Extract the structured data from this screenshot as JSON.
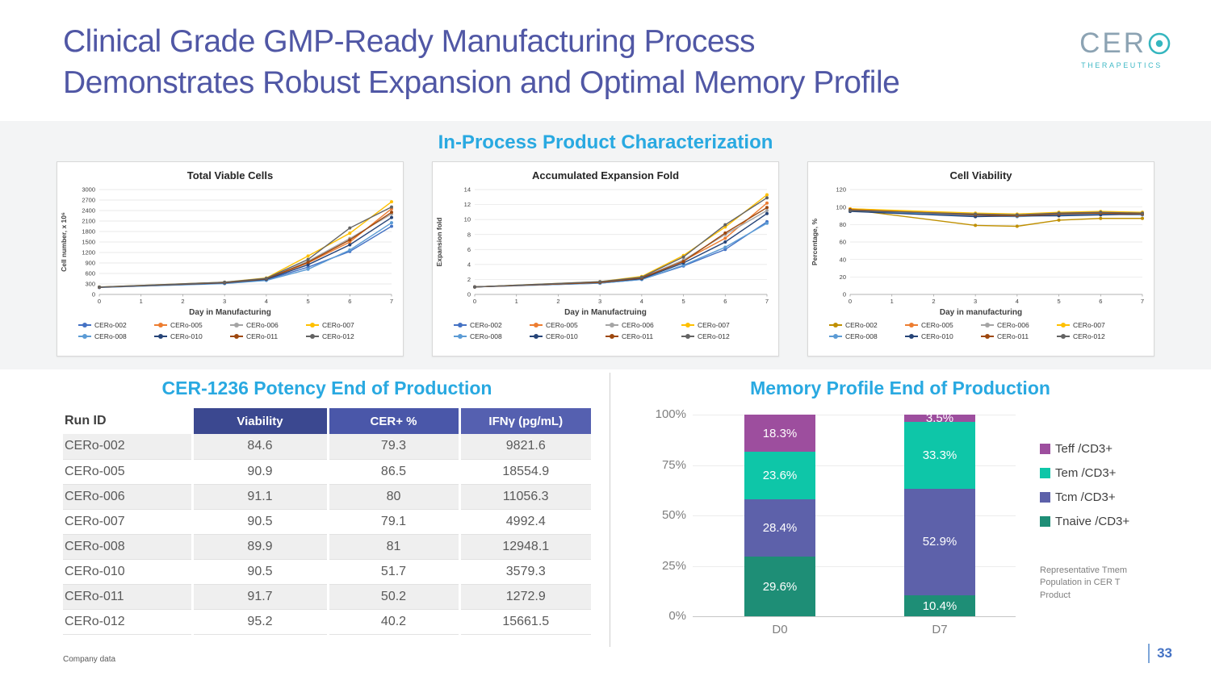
{
  "slide": {
    "title_line1": "Clinical Grade GMP-Ready Manufacturing Process",
    "title_line2": "Demonstrates Robust Expansion and Optimal Memory Profile",
    "footer_note": "Company data",
    "page_number": "33"
  },
  "logo": {
    "text": "CER",
    "sub": "THERAPEUTICS"
  },
  "section": {
    "title": "In-Process Product Characterization"
  },
  "potency": {
    "title": "CER-1236 Potency End of Production",
    "columns": [
      "Run ID",
      "Viability",
      "CER+ %",
      "IFNγ  (pg/mL)"
    ],
    "rows": [
      [
        "CERo-002",
        "84.6",
        "79.3",
        "9821.6"
      ],
      [
        "CERo-005",
        "90.9",
        "86.5",
        "18554.9"
      ],
      [
        "CERo-006",
        "91.1",
        "80",
        "11056.3"
      ],
      [
        "CERo-007",
        "90.5",
        "79.1",
        "4992.4"
      ],
      [
        "CERo-008",
        "89.9",
        "81",
        "12948.1"
      ],
      [
        "CERo-010",
        "90.5",
        "51.7",
        "3579.3"
      ],
      [
        "CERo-011",
        "91.7",
        "50.2",
        "1272.9"
      ],
      [
        "CERo-012",
        "95.2",
        "40.2",
        "15661.5"
      ]
    ]
  },
  "memory": {
    "note": "Representative Tmem Population in CER T Product"
  },
  "chart_data": [
    {
      "type": "line",
      "title": "Total Viable Cells",
      "xlabel": "Day in Manufacturing",
      "ylabel": "Cell number, x 10⁶",
      "xlim": [
        0,
        7
      ],
      "ylim": [
        0,
        3000
      ],
      "xticks": [
        0,
        1,
        2,
        3,
        4,
        5,
        6,
        7
      ],
      "yticks": [
        0,
        300,
        600,
        900,
        1200,
        1500,
        1800,
        2100,
        2400,
        2700,
        3000
      ],
      "x": [
        0,
        3,
        4,
        5,
        6,
        7
      ],
      "grid": true,
      "legend_position": "bottom",
      "series": [
        {
          "name": "CERo-002",
          "color": "#4472C4",
          "values": [
            200,
            320,
            420,
            780,
            1230,
            1950
          ]
        },
        {
          "name": "CERo-005",
          "color": "#ED7D31",
          "values": [
            210,
            330,
            440,
            900,
            1500,
            2450
          ]
        },
        {
          "name": "CERo-006",
          "color": "#A5A5A5",
          "values": [
            205,
            330,
            430,
            950,
            1600,
            2300
          ]
        },
        {
          "name": "CERo-007",
          "color": "#FFC000",
          "values": [
            210,
            350,
            470,
            1100,
            1750,
            2650
          ]
        },
        {
          "name": "CERo-008",
          "color": "#5B9BD5",
          "values": [
            200,
            310,
            400,
            720,
            1270,
            2050
          ]
        },
        {
          "name": "CERo-010",
          "color": "#264478",
          "values": [
            205,
            330,
            430,
            850,
            1420,
            2200
          ]
        },
        {
          "name": "CERo-011",
          "color": "#9E480E",
          "values": [
            205,
            340,
            450,
            920,
            1560,
            2350
          ]
        },
        {
          "name": "CERo-012",
          "color": "#636363",
          "values": [
            210,
            350,
            460,
            1000,
            1900,
            2500
          ]
        }
      ]
    },
    {
      "type": "line",
      "title": "Accumulated Expansion Fold",
      "xlabel": "Day in Manufactruing",
      "ylabel": "Expansion fold",
      "xlim": [
        0,
        7
      ],
      "ylim": [
        0,
        14
      ],
      "xticks": [
        0,
        1,
        2,
        3,
        4,
        5,
        6,
        7
      ],
      "yticks": [
        0,
        2,
        4,
        6,
        8,
        10,
        12,
        14
      ],
      "x": [
        0,
        3,
        4,
        5,
        6,
        7
      ],
      "grid": true,
      "legend_position": "bottom",
      "series": [
        {
          "name": "CERo-002",
          "color": "#4472C4",
          "values": [
            1,
            1.5,
            2.0,
            3.8,
            6.0,
            9.7
          ]
        },
        {
          "name": "CERo-005",
          "color": "#ED7D31",
          "values": [
            1,
            1.6,
            2.2,
            4.5,
            7.5,
            12.2
          ]
        },
        {
          "name": "CERo-006",
          "color": "#A5A5A5",
          "values": [
            1,
            1.6,
            2.2,
            4.6,
            8.0,
            11.2
          ]
        },
        {
          "name": "CERo-007",
          "color": "#FFC000",
          "values": [
            1,
            1.7,
            2.4,
            5.2,
            9.0,
            13.3
          ]
        },
        {
          "name": "CERo-008",
          "color": "#5B9BD5",
          "values": [
            1,
            1.5,
            2.0,
            3.9,
            6.3,
            9.5
          ]
        },
        {
          "name": "CERo-010",
          "color": "#264478",
          "values": [
            1,
            1.6,
            2.1,
            4.2,
            7.0,
            10.8
          ]
        },
        {
          "name": "CERo-011",
          "color": "#9E480E",
          "values": [
            1,
            1.6,
            2.2,
            4.4,
            8.2,
            11.6
          ]
        },
        {
          "name": "CERo-012",
          "color": "#636363",
          "values": [
            1,
            1.7,
            2.3,
            5.0,
            9.3,
            12.9
          ]
        }
      ]
    },
    {
      "type": "line",
      "title": "Cell Viability",
      "xlabel": "Day in manufacturing",
      "ylabel": "Percentage, %",
      "xlim": [
        0,
        7
      ],
      "ylim": [
        0,
        120
      ],
      "xticks": [
        0,
        1,
        2,
        3,
        4,
        5,
        6,
        7
      ],
      "yticks": [
        0,
        20,
        40,
        60,
        80,
        100,
        120
      ],
      "x": [
        0,
        3,
        4,
        5,
        6,
        7
      ],
      "grid": true,
      "legend_position": "bottom",
      "series": [
        {
          "name": "CERo-002",
          "color": "#BF8F00",
          "values": [
            97,
            79,
            78,
            85,
            87,
            87
          ]
        },
        {
          "name": "CERo-005",
          "color": "#ED7D31",
          "values": [
            98,
            92,
            91,
            92,
            93,
            92
          ]
        },
        {
          "name": "CERo-006",
          "color": "#A5A5A5",
          "values": [
            97,
            91,
            90,
            92,
            92,
            91
          ]
        },
        {
          "name": "CERo-007",
          "color": "#FFC000",
          "values": [
            98,
            93,
            92,
            94,
            95,
            94
          ]
        },
        {
          "name": "CERo-008",
          "color": "#5B9BD5",
          "values": [
            96,
            90,
            89,
            91,
            92,
            91
          ]
        },
        {
          "name": "CERo-010",
          "color": "#264478",
          "values": [
            95,
            89,
            90,
            90,
            91,
            92
          ]
        },
        {
          "name": "CERo-011",
          "color": "#9E480E",
          "values": [
            97,
            91,
            90,
            92,
            93,
            92
          ]
        },
        {
          "name": "CERo-012",
          "color": "#636363",
          "values": [
            96,
            92,
            91,
            93,
            94,
            93
          ]
        }
      ]
    },
    {
      "type": "stacked-bar",
      "title": "Memory Profile End of Production",
      "categories": [
        "D0",
        "D7"
      ],
      "ylim": [
        0,
        100
      ],
      "yticklabels": [
        "100%",
        "75%",
        "50%",
        "25%",
        "0%"
      ],
      "legend_position": "right",
      "series": [
        {
          "name": "Tnaive /CD3+",
          "color": "#1E8E76",
          "values": [
            29.6,
            10.4
          ]
        },
        {
          "name": "Tcm /CD3+",
          "color": "#5D61AA",
          "values": [
            28.4,
            52.9
          ]
        },
        {
          "name": "Tem /CD3+",
          "color": "#0EC6A8",
          "values": [
            23.6,
            33.3
          ]
        },
        {
          "name": "Teff /CD3+",
          "color": "#9D4E9E",
          "values": [
            18.3,
            3.5
          ]
        }
      ],
      "legend": [
        {
          "label": "Teff /CD3+",
          "color": "#9D4E9E"
        },
        {
          "label": "Tem /CD3+",
          "color": "#0EC6A8"
        },
        {
          "label": "Tcm /CD3+",
          "color": "#5D61AA"
        },
        {
          "label": "Tnaive /CD3+",
          "color": "#1E8E76"
        }
      ]
    }
  ]
}
